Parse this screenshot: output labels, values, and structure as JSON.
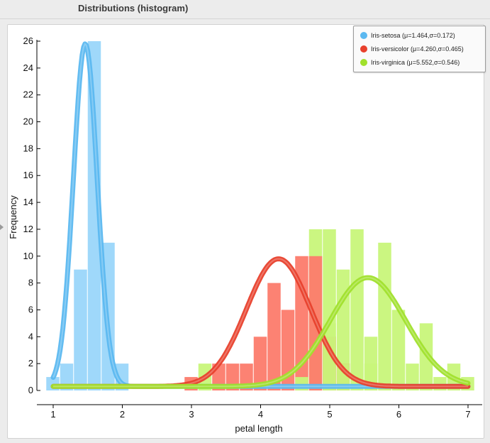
{
  "window": {
    "title": "Distributions (histogram)"
  },
  "chart_data": {
    "type": "bar",
    "subtype": "histogram-with-fitted-normal",
    "title": "",
    "xlabel": "petal length",
    "ylabel": "Frequency",
    "xlim": [
      1,
      7
    ],
    "ylim": [
      0,
      26
    ],
    "xticks": [
      1,
      2,
      3,
      4,
      5,
      6,
      7
    ],
    "yticks": [
      0,
      2,
      4,
      6,
      8,
      10,
      12,
      14,
      16,
      18,
      20,
      22,
      24,
      26
    ],
    "bin_width": 0.2,
    "grid": false,
    "legend": {
      "position": "top-right"
    },
    "series": [
      {
        "name": "Iris-setosa",
        "legend_label": "Iris-setosa (μ=1.464,σ=0.172)",
        "color": "#5bb8f0",
        "bar_color": "#9ad6fa",
        "mean": 1.464,
        "sd": 0.172,
        "bins": [
          [
            1.0,
            1
          ],
          [
            1.2,
            2
          ],
          [
            1.4,
            9
          ],
          [
            1.6,
            26
          ],
          [
            1.8,
            11
          ],
          [
            2.0,
            2
          ]
        ]
      },
      {
        "name": "Iris-versicolor",
        "legend_label": "Iris-versicolor (μ=4.260,σ=0.465)",
        "color": "#e8402c",
        "bar_color": "#fc7b6c",
        "mean": 4.26,
        "sd": 0.465,
        "bins": [
          [
            3.0,
            1
          ],
          [
            3.4,
            2
          ],
          [
            3.6,
            2
          ],
          [
            3.8,
            2
          ],
          [
            4.0,
            4
          ],
          [
            4.2,
            8
          ],
          [
            4.4,
            6
          ],
          [
            4.6,
            10
          ],
          [
            4.8,
            10
          ],
          [
            5.0,
            4
          ],
          [
            5.2,
            2
          ]
        ]
      },
      {
        "name": "Iris-virginica",
        "legend_label": "Iris-virginica (μ=5.552,σ=0.546)",
        "color": "#a0e02c",
        "bar_color": "#c8f57a",
        "mean": 5.552,
        "sd": 0.546,
        "bins": [
          [
            4.6,
            1
          ],
          [
            5.0,
            5
          ],
          [
            5.2,
            2
          ],
          [
            5.6,
            4
          ],
          [
            5.8,
            11
          ],
          [
            6.0,
            6
          ],
          [
            6.2,
            2
          ],
          [
            6.4,
            5
          ],
          [
            6.6,
            1
          ],
          [
            6.8,
            2
          ],
          [
            7.0,
            1
          ]
        ]
      }
    ],
    "stacked_tops": [
      [
        3.2,
        2
      ],
      [
        4.8,
        12
      ],
      [
        5.0,
        12
      ],
      [
        5.2,
        9
      ],
      [
        5.4,
        12
      ],
      [
        5.6,
        2
      ]
    ]
  }
}
